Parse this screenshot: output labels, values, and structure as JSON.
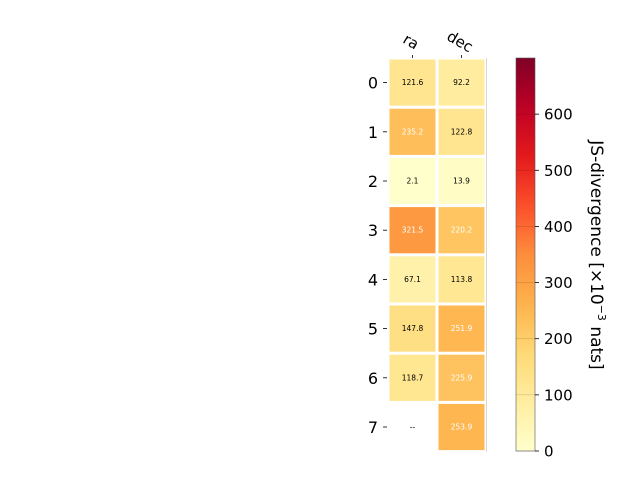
{
  "chart_data": {
    "type": "heatmap",
    "columns": [
      "ra",
      "dec"
    ],
    "rows": [
      "0",
      "1",
      "2",
      "3",
      "4",
      "5",
      "6",
      "7"
    ],
    "values": [
      [
        121.6,
        92.2
      ],
      [
        235.2,
        122.8
      ],
      [
        2.1,
        13.9
      ],
      [
        321.5,
        220.2
      ],
      [
        67.1,
        113.8
      ],
      [
        147.8,
        251.9
      ],
      [
        118.7,
        225.9
      ],
      [
        null,
        253.9
      ]
    ],
    "labels": [
      [
        "121.6",
        "92.2"
      ],
      [
        "235.2",
        "122.8"
      ],
      [
        "2.1",
        "13.9"
      ],
      [
        "321.5",
        "220.2"
      ],
      [
        "67.1",
        "113.8"
      ],
      [
        "147.8",
        "251.9"
      ],
      [
        "118.7",
        "225.9"
      ],
      [
        "--",
        "253.9"
      ]
    ],
    "missing_label": "--",
    "colorbar": {
      "label": "JS-divergence [×10⁻³ nats]",
      "label_main": "JS-divergence [×10",
      "label_sup": "−3",
      "label_tail": " nats]",
      "range": [
        0,
        700
      ],
      "ticks": [
        0,
        100,
        200,
        300,
        400,
        500,
        600
      ],
      "tick_labels": [
        "0",
        "100",
        "200",
        "300",
        "400",
        "500",
        "600"
      ],
      "colormap": "YlOrRd",
      "position": "right"
    },
    "grid": false
  },
  "colors": {
    "cell_border": "#ffffff",
    "text_dark": "#000000",
    "text_light": "#ffffff",
    "colormap_stops": [
      "#ffffcc",
      "#ffeda0",
      "#fed976",
      "#feb24c",
      "#fd8d3c",
      "#fc4e2a",
      "#e31a1c",
      "#bd0026",
      "#800026"
    ]
  }
}
